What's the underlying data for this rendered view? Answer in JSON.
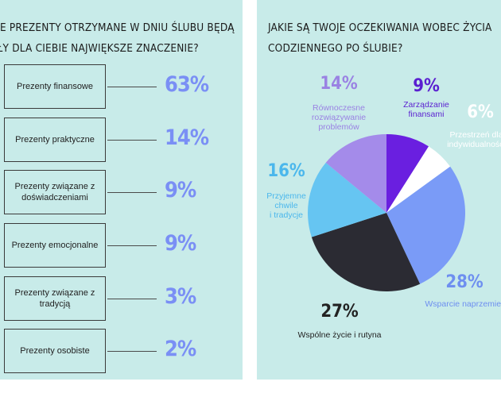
{
  "left": {
    "title_line1": "KIE PREZENTY OTRZYMANE W DNIU ŚLUBU BĘDĄ",
    "title_line2": "AŁY DLA CIEBIE NAJWIĘKSZE ZNACZENIE?",
    "items": [
      {
        "label": "Prezenty finansowe",
        "value": "63%"
      },
      {
        "label": "Prezenty praktyczne",
        "value": "14%"
      },
      {
        "label": "Prezenty związane z doświadczeniami",
        "value": "9%"
      },
      {
        "label": "Prezenty emocjonalne",
        "value": "9%"
      },
      {
        "label": "Prezenty związane z tradycją",
        "value": "3%"
      },
      {
        "label": "Prezenty osobiste",
        "value": "2%"
      }
    ]
  },
  "right": {
    "title_line1": "JAKIE SĄ TWOJE OCZEKIWANIA WOBEC ŻYCIA",
    "title_line2": "CODZIENNEGO PO ŚLUBIE?"
  },
  "chart_data": {
    "type": "pie",
    "slices": [
      {
        "label_lines": [
          "Zarządzanie",
          "finansami"
        ],
        "value": 9,
        "value_text": "9%",
        "color": "#6a1fe0",
        "text_color": "#5a1fd0"
      },
      {
        "label_lines": [
          "Przestrzeń dla",
          "indywidualności"
        ],
        "value": 6,
        "value_text": "6%",
        "color": "#ffffff",
        "text_color": "#ffffff"
      },
      {
        "label_lines": [
          "Wsparcie naprzemienne"
        ],
        "value": 28,
        "value_text": "28%",
        "color": "#7a9bf7",
        "text_color": "#6e8ff0"
      },
      {
        "label_lines": [
          "Wspólne życie i rutyna"
        ],
        "value": 27,
        "value_text": "27%",
        "color": "#2b2b33",
        "text_color": "#222222"
      },
      {
        "label_lines": [
          "Przyjemne",
          "chwile",
          "i tradycje"
        ],
        "value": 16,
        "value_text": "16%",
        "color": "#66c5f2",
        "text_color": "#4bb7ec"
      },
      {
        "label_lines": [
          "Równoczesne",
          "rozwiązywanie",
          "problemów"
        ],
        "value": 14,
        "value_text": "14%",
        "color": "#a48bea",
        "text_color": "#9a82e3"
      }
    ]
  }
}
